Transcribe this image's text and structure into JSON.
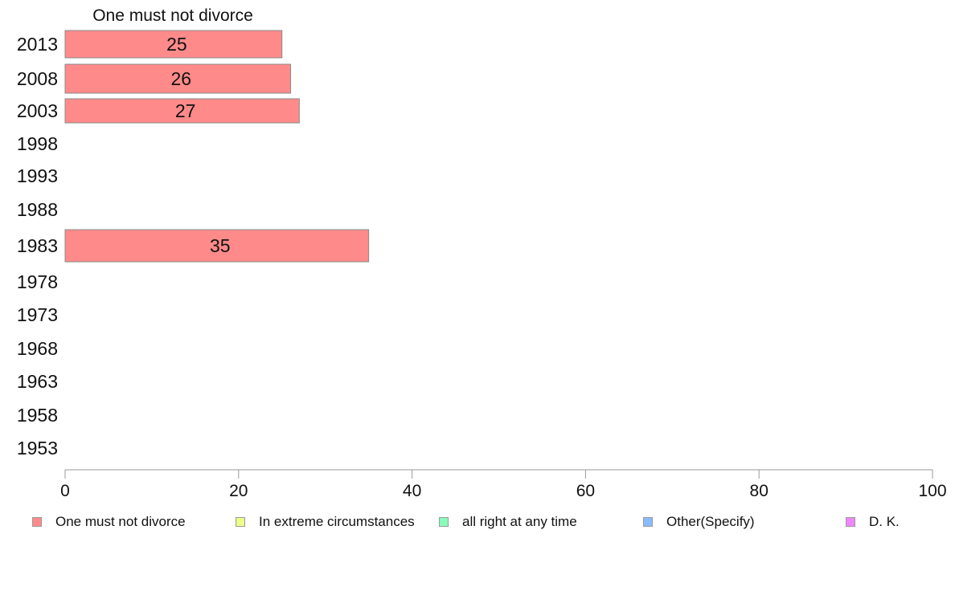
{
  "chart_data": {
    "type": "bar",
    "orientation": "horizontal",
    "title": "One must not divorce",
    "categories": [
      "2013",
      "2008",
      "2003",
      "1998",
      "1993",
      "1988",
      "1983",
      "1978",
      "1973",
      "1968",
      "1963",
      "1958",
      "1953"
    ],
    "series": [
      {
        "name": "One must not divorce",
        "color": "#ff8a8a",
        "values": [
          25,
          26,
          27,
          null,
          null,
          null,
          35,
          null,
          null,
          null,
          null,
          null,
          null
        ],
        "labels": [
          "25",
          "26",
          "27",
          "",
          "",
          "",
          "35",
          "",
          "",
          "",
          "",
          "",
          ""
        ]
      }
    ],
    "xlim": [
      0,
      100
    ],
    "xticks": [
      "0",
      "20",
      "40",
      "60",
      "80",
      "100"
    ],
    "grid": false,
    "legend_position": "bottom"
  },
  "legend": {
    "items": [
      {
        "label": "One must not divorce",
        "color": "#ff8a8a"
      },
      {
        "label": "In extreme circumstances",
        "color": "#eeff88"
      },
      {
        "label": "all right at any time",
        "color": "#88ffbb"
      },
      {
        "label": "Other(Specify)",
        "color": "#88bbff"
      },
      {
        "label": "D. K.",
        "color": "#ee88ff"
      }
    ]
  }
}
